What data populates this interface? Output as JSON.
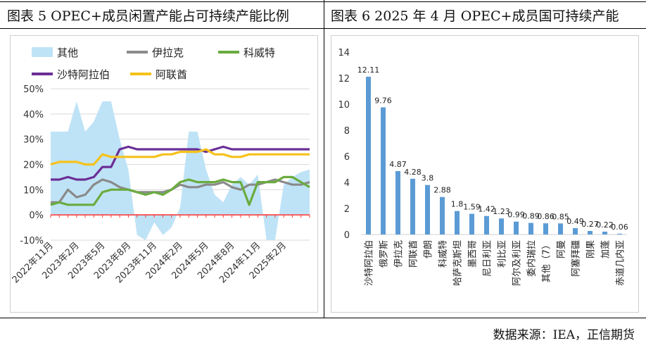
{
  "left": {
    "title": "图表 5   OPEC+成员闲置产能占可持续产能比例"
  },
  "right": {
    "title": "图表 6   2025 年 4 月 OPEC+成员国可持续产能"
  },
  "source": "数据来源：IEA，正信期货",
  "colors": {
    "other": "#bfe3f6",
    "iraq": "#8a8a8a",
    "kuwait": "#6aab3f",
    "saudi": "#6b2f96",
    "uae": "#f5c21b",
    "bar": "#5b9bd5"
  },
  "chart_data": [
    {
      "type": "line",
      "legend_position": "top",
      "y_tick_labels": [
        "50%",
        "40%",
        "30%",
        "20%",
        "10%",
        "0%",
        "-10%"
      ],
      "y_ticks": [
        50,
        40,
        30,
        20,
        10,
        0,
        -10
      ],
      "ylim": [
        -10,
        50
      ],
      "grid": true,
      "x_tick_labels": [
        "2022年11月",
        "2023年2月",
        "2023年5月",
        "2023年8月",
        "2023年11月",
        "2024年2月",
        "2024年5月",
        "2024年8月",
        "2024年11月",
        "2025年2月"
      ],
      "x_tick_index": [
        0,
        3,
        6,
        9,
        12,
        15,
        18,
        21,
        24,
        27
      ],
      "n_points": 31,
      "series": [
        {
          "name": "其他",
          "kind": "area",
          "values": [
            33,
            33,
            33,
            45,
            33,
            37,
            45,
            45,
            30,
            18,
            -8,
            -10,
            -3,
            -8,
            -5,
            3,
            33,
            33,
            18,
            8,
            5,
            12,
            15,
            12,
            16,
            -10,
            -10,
            12,
            15,
            17,
            18
          ]
        },
        {
          "name": "伊拉克",
          "kind": "line",
          "values": [
            5,
            5,
            10,
            7,
            8,
            12,
            14,
            13,
            11,
            10,
            9,
            9,
            9,
            9,
            10,
            12,
            11,
            11,
            12,
            12,
            13,
            11,
            10,
            12,
            12,
            13,
            14,
            13,
            12,
            12,
            13
          ]
        },
        {
          "name": "科威特",
          "kind": "line",
          "values": [
            4,
            5,
            4,
            4,
            4,
            4,
            9,
            10,
            10,
            10,
            9,
            8,
            9,
            8,
            10,
            13,
            14,
            13,
            13,
            13,
            14,
            13,
            13,
            4,
            13,
            13,
            13,
            15,
            15,
            13,
            11
          ]
        },
        {
          "name": "沙特阿拉伯",
          "kind": "line",
          "values": [
            14,
            14,
            15,
            14,
            14,
            15,
            19,
            19,
            26,
            27,
            26,
            26,
            26,
            26,
            26,
            26,
            26,
            26,
            25,
            26,
            27,
            26,
            26,
            26,
            26,
            26,
            26,
            26,
            26,
            26,
            26
          ]
        },
        {
          "name": "阿联酋",
          "kind": "line",
          "values": [
            20,
            21,
            21,
            21,
            20,
            20,
            24,
            23,
            23,
            23,
            23,
            23,
            23,
            24,
            24,
            25,
            25,
            25,
            26,
            24,
            24,
            23,
            23,
            24,
            24,
            24,
            24,
            24,
            24,
            24,
            24
          ]
        }
      ]
    },
    {
      "type": "bar",
      "ylim": [
        0,
        14
      ],
      "y_ticks": [
        0,
        2,
        4,
        6,
        8,
        10,
        12,
        14
      ],
      "grid": false,
      "categories": [
        "沙特阿拉伯",
        "俄罗斯",
        "伊拉克",
        "阿联酋",
        "伊朗",
        "科威特",
        "哈萨克斯坦",
        "墨西哥",
        "尼日利亚",
        "利比亚",
        "阿尔及利亚",
        "委内瑞拉",
        "其他（7）",
        "阿曼",
        "阿塞拜疆",
        "刚果",
        "加蓬",
        "赤道几内亚"
      ],
      "values": [
        12.11,
        9.76,
        4.87,
        4.28,
        3.8,
        2.88,
        1.8,
        1.59,
        1.42,
        1.23,
        0.99,
        0.89,
        0.86,
        0.85,
        0.49,
        0.27,
        0.22,
        0.06
      ],
      "data_labels": [
        "12.11",
        "9.76",
        "4.87",
        "4.28",
        "3.8",
        "2.88",
        "1.8",
        "1.59",
        "1.42",
        "1.23",
        "0.99",
        "0.89",
        "0.86",
        "0.85",
        "0.49",
        "0.27",
        "0.22",
        "0.06"
      ]
    }
  ]
}
